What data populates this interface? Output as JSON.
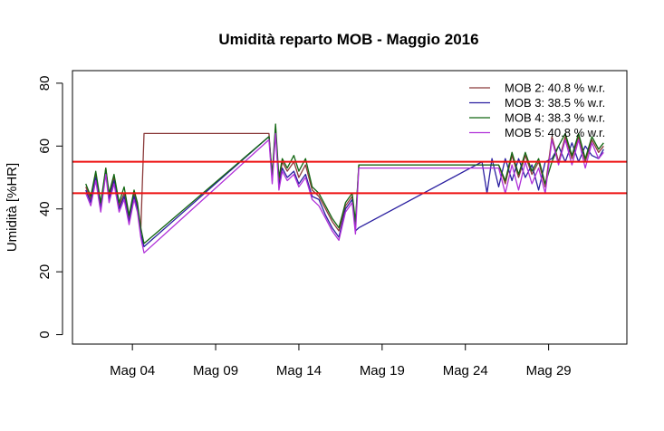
{
  "chart_data": {
    "type": "line",
    "title": "Umidità reparto MOB - Maggio 2016",
    "xlabel": "",
    "ylabel": "Umidità [%HR]",
    "x_unit": "day of May 2016",
    "xlim": [
      0.4,
      33.7
    ],
    "ylim": [
      -3,
      84
    ],
    "x_ticks": [
      {
        "value": 4,
        "label": "Mag 04"
      },
      {
        "value": 9,
        "label": "Mag 09"
      },
      {
        "value": 14,
        "label": "Mag 14"
      },
      {
        "value": 19,
        "label": "Mag 19"
      },
      {
        "value": 24,
        "label": "Mag 24"
      },
      {
        "value": 29,
        "label": "Mag 29"
      }
    ],
    "y_ticks": [
      0,
      20,
      40,
      60,
      80
    ],
    "grid": false,
    "legend_position": "top-right",
    "hlines": [
      {
        "value": 55,
        "color": "#ee1111"
      },
      {
        "value": 45,
        "color": "#ee1111"
      }
    ],
    "series": [
      {
        "name": "MOB 2:  40.8 % w.r.",
        "color": "#8b3a3a",
        "x": [
          1.2,
          1.5,
          1.8,
          2.1,
          2.4,
          2.6,
          2.9,
          3.2,
          3.5,
          3.8,
          4.1,
          4.3,
          4.5,
          4.7,
          12.2,
          12.4,
          12.6,
          12.8,
          13.0,
          13.3,
          13.7,
          14.0,
          14.4,
          14.8,
          15.2,
          15.6,
          16.0,
          16.4,
          16.8,
          17.2,
          17.4,
          17.6,
          26.0,
          26.4,
          26.8,
          27.2,
          27.6,
          28.0,
          28.4,
          28.8,
          29.2,
          29.6,
          30.0,
          30.4,
          30.8,
          31.2,
          31.6,
          32.0,
          32.3
        ],
        "y": [
          47,
          43,
          51,
          41,
          53,
          44,
          50,
          41,
          45,
          37,
          45,
          41,
          33,
          64,
          64,
          50,
          66,
          48,
          55,
          52,
          55,
          50,
          54,
          46,
          44,
          40,
          36,
          33,
          41,
          44,
          35,
          54,
          54,
          48,
          57,
          50,
          57,
          51,
          55,
          47,
          63,
          55,
          63,
          56,
          63,
          55,
          62,
          58,
          60
        ]
      },
      {
        "name": "MOB 3:  38.5 % w.r.",
        "color": "#2a1fa0",
        "x": [
          1.2,
          1.5,
          1.8,
          2.1,
          2.4,
          2.6,
          2.9,
          3.2,
          3.5,
          3.8,
          4.1,
          4.3,
          4.5,
          4.7,
          12.2,
          12.4,
          12.6,
          12.8,
          13.0,
          13.3,
          13.7,
          14.0,
          14.4,
          14.8,
          15.2,
          15.6,
          16.0,
          16.4,
          16.8,
          17.2,
          17.4,
          17.6,
          25.0,
          25.3,
          25.6,
          26.0,
          26.4,
          26.8,
          27.2,
          27.6,
          28.0,
          28.4,
          28.8,
          29.2,
          29.6,
          30.0,
          30.4,
          30.8,
          31.2,
          31.6,
          32.0,
          32.3
        ],
        "y": [
          46,
          42,
          50,
          40,
          52,
          43,
          49,
          40,
          44,
          36,
          44,
          40,
          32,
          28,
          63,
          49,
          65,
          47,
          53,
          50,
          52,
          48,
          51,
          44,
          43,
          38,
          34,
          31,
          40,
          43,
          33,
          34,
          55,
          45,
          56,
          47,
          56,
          49,
          56,
          50,
          54,
          46,
          55,
          56,
          60,
          55,
          61,
          55,
          60,
          57,
          56,
          59
        ]
      },
      {
        "name": "MOB 4:  38.3 % w.r.",
        "color": "#116611",
        "x": [
          1.2,
          1.5,
          1.8,
          2.1,
          2.4,
          2.6,
          2.9,
          3.2,
          3.5,
          3.8,
          4.1,
          4.3,
          4.5,
          4.7,
          12.2,
          12.4,
          12.6,
          12.8,
          13.0,
          13.3,
          13.7,
          14.0,
          14.4,
          14.8,
          15.2,
          15.6,
          16.0,
          16.4,
          16.8,
          17.2,
          17.4,
          17.6,
          26.0,
          26.4,
          26.8,
          27.2,
          27.6,
          28.0,
          28.4,
          28.8,
          29.2,
          29.6,
          30.0,
          30.4,
          30.8,
          31.2,
          31.6,
          32.0,
          32.3
        ],
        "y": [
          48,
          44,
          52,
          42,
          53,
          45,
          51,
          42,
          47,
          38,
          46,
          42,
          34,
          29,
          63,
          51,
          67,
          50,
          56,
          53,
          57,
          52,
          56,
          47,
          45,
          41,
          37,
          34,
          42,
          45,
          36,
          54,
          54,
          49,
          58,
          51,
          58,
          52,
          56,
          48,
          55,
          60,
          64,
          57,
          64,
          56,
          63,
          59,
          61
        ]
      },
      {
        "name": "MOB 5:  40.8 % w.r.",
        "color": "#b030d8",
        "x": [
          1.2,
          1.5,
          1.8,
          2.1,
          2.4,
          2.6,
          2.9,
          3.2,
          3.5,
          3.8,
          4.1,
          4.3,
          4.5,
          4.7,
          12.2,
          12.4,
          12.6,
          12.8,
          13.0,
          13.3,
          13.7,
          14.0,
          14.4,
          14.8,
          15.2,
          15.6,
          16.0,
          16.4,
          16.8,
          17.2,
          17.4,
          17.6,
          26.0,
          26.4,
          26.8,
          27.2,
          27.6,
          28.0,
          28.4,
          28.8,
          29.2,
          29.6,
          30.0,
          30.4,
          30.8,
          31.2,
          31.6,
          32.0,
          32.3
        ],
        "y": [
          45,
          41,
          49,
          39,
          51,
          42,
          48,
          39,
          43,
          35,
          43,
          39,
          31,
          26,
          62,
          48,
          64,
          46,
          52,
          49,
          51,
          47,
          50,
          43,
          41,
          37,
          33,
          30,
          39,
          42,
          32,
          53,
          53,
          45,
          54,
          46,
          55,
          48,
          53,
          45,
          62,
          54,
          62,
          54,
          62,
          53,
          61,
          56,
          58
        ]
      }
    ]
  }
}
